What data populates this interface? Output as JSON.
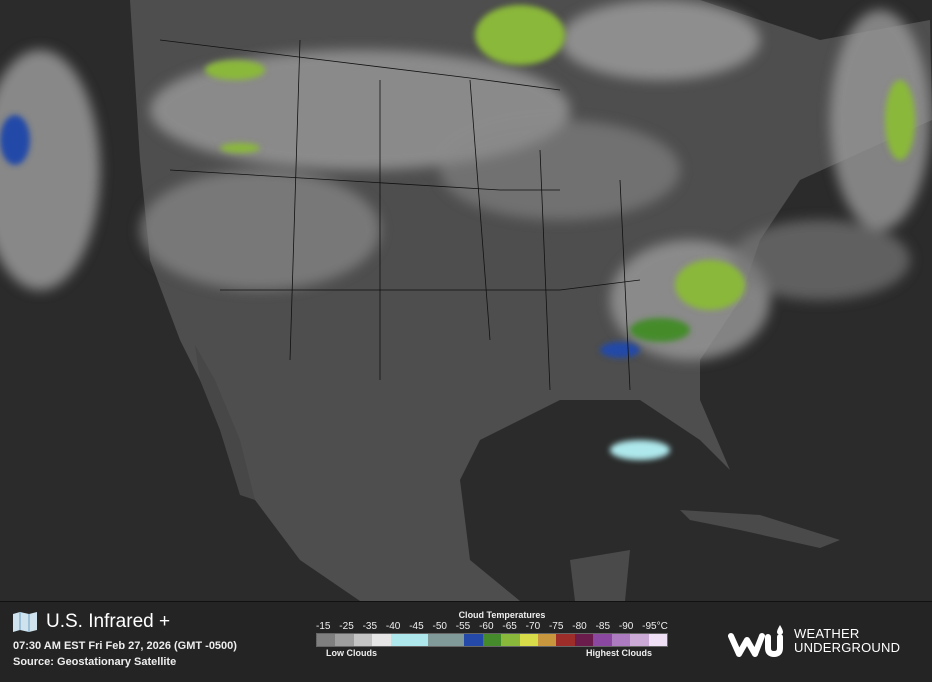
{
  "header": {
    "title": "U.S. Infrared +",
    "timestamp": "07:30 AM EST Fri Feb 27, 2026 (GMT -0500)",
    "source": "Source: Geostationary Satellite",
    "map_icon": "folded-map-icon"
  },
  "legend": {
    "title": "Cloud Temperatures",
    "unit": "°C",
    "ticks": [
      "-15",
      "-25",
      "-35",
      "-40",
      "-45",
      "-50",
      "-55",
      "-60",
      "-65",
      "-70",
      "-75",
      "-80",
      "-85",
      "-90",
      "-95"
    ],
    "colors": [
      "#7f7f7f",
      "#9e9e9e",
      "#c4c4c4",
      "#e6e6e6",
      "#aee8ec",
      "#aee8ec",
      "#809a9a",
      "#809a9a",
      "#2449a8",
      "#458b2c",
      "#8ab83a",
      "#d8dc48",
      "#c8963c",
      "#9c2d28",
      "#6c1c4c",
      "#8a48a0",
      "#ad7cc0",
      "#ccaad8",
      "#eedff4"
    ],
    "low_label": "Low Clouds",
    "high_label": "Highest Clouds"
  },
  "brand": {
    "line1": "WEATHER",
    "line2": "UNDERGROUND",
    "logo_letters": "wu"
  }
}
